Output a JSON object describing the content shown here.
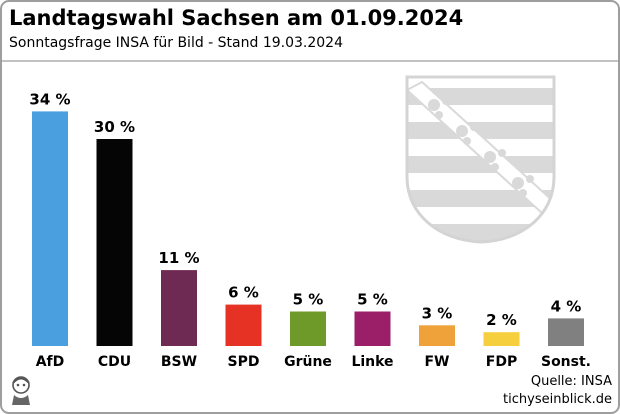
{
  "header": {
    "title": "Landtagswahl Sachsen am 01.09.2024",
    "subtitle": "Sonntagsfrage INSA für Bild - Stand 19.03.2024"
  },
  "footer": {
    "source": "Quelle: INSA",
    "site": "tichyseinblick.de"
  },
  "colors": {
    "coat_of_arms": "#d9d9d9",
    "divider": "#c2c2c2"
  },
  "icons": {
    "coat_of_arms": "saxony-coat-of-arms-icon",
    "logo": "publisher-logo-icon"
  },
  "chart_data": {
    "type": "bar",
    "title": "Landtagswahl Sachsen am 01.09.2024",
    "subtitle": "Sonntagsfrage INSA für Bild - Stand 19.03.2024",
    "categories": [
      "AfD",
      "CDU",
      "BSW",
      "SPD",
      "Grüne",
      "Linke",
      "FW",
      "FDP",
      "Sonst."
    ],
    "values": [
      34,
      30,
      11,
      6,
      5,
      5,
      3,
      2,
      4
    ],
    "value_labels": [
      "34 %",
      "30 %",
      "11 %",
      "6 %",
      "5 %",
      "5 %",
      "3 %",
      "2 %",
      "4 %"
    ],
    "colors": [
      "#4a9fdf",
      "#050505",
      "#6e2a52",
      "#e53224",
      "#6e9a2a",
      "#9a1e68",
      "#f0a23a",
      "#f5cf3e",
      "#808080"
    ],
    "unit": "%",
    "xlabel": "",
    "ylabel": "",
    "grid": false,
    "legend": "none"
  }
}
